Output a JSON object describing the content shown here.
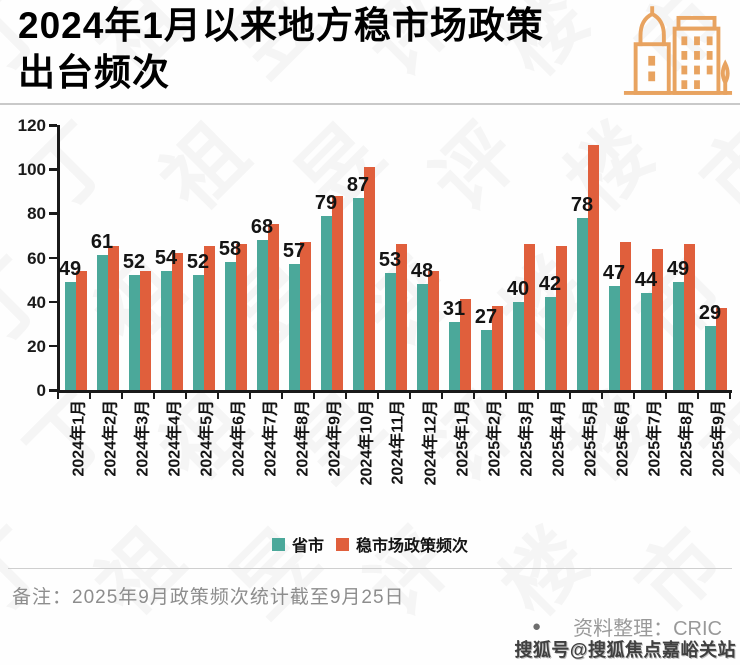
{
  "header": {
    "title_line1": "2024年1月以来地方稳市场政策",
    "title_line2": "出台频次",
    "icon": "buildings-icon",
    "icon_color": "#E8A360"
  },
  "chart_data": {
    "type": "bar",
    "title": "2024年1月以来地方稳市场政策出台频次",
    "categories": [
      "2024年1月",
      "2024年2月",
      "2024年3月",
      "2024年4月",
      "2024年5月",
      "2024年6月",
      "2024年7月",
      "2024年8月",
      "2024年9月",
      "2024年10月",
      "2024年11月",
      "2024年12月",
      "2025年1月",
      "2025年2月",
      "2025年3月",
      "2025年4月",
      "2025年5月",
      "2025年6月",
      "2025年7月",
      "2025年8月",
      "2025年9月"
    ],
    "series": [
      {
        "name": "省市",
        "color": "#4BA89A",
        "labeled": true,
        "values": [
          49,
          61,
          52,
          54,
          52,
          58,
          68,
          57,
          79,
          87,
          53,
          48,
          31,
          27,
          40,
          42,
          78,
          47,
          44,
          49,
          29
        ]
      },
      {
        "name": "稳市场政策频次",
        "color": "#E05F3C",
        "labeled": false,
        "values": [
          54,
          65,
          54,
          62,
          65,
          66,
          75,
          67,
          88,
          101,
          66,
          54,
          41,
          38,
          66,
          65,
          111,
          67,
          64,
          66,
          37
        ]
      }
    ],
    "xlabel": "",
    "ylabel": "",
    "ylim": [
      0,
      120
    ],
    "yticks": [
      0,
      20,
      40,
      60,
      80,
      100,
      120
    ],
    "grid": false,
    "legend_position": "bottom",
    "x_label_rotation": -90
  },
  "footer": {
    "note": "备注：2025年9月政策频次统计截至9月25日",
    "bullet": "●",
    "source": "资料整理：CRIC",
    "sohu_badge": "搜狐号@搜狐焦点嘉峪关站"
  },
  "watermark": {
    "diagonal_text": "丁祖昱评楼市"
  }
}
